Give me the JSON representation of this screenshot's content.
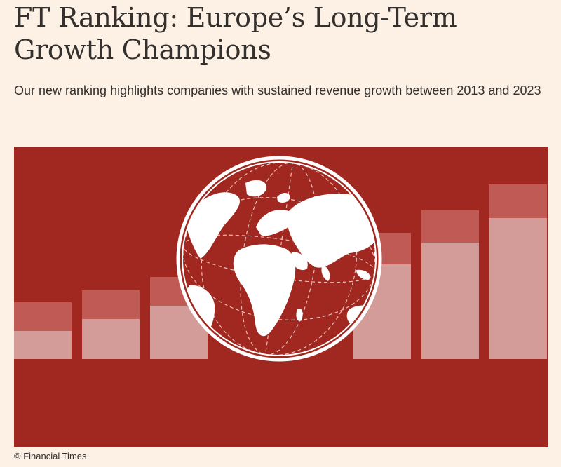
{
  "article": {
    "title": "FT Ranking: Europe’s Long-Term Growth Champions",
    "subtitle": "Our new ranking highlights companies with sustained revenue growth between 2013 and 2023"
  },
  "image": {
    "description_icon": "globe-icon",
    "credit": "© Financial Times"
  },
  "colors": {
    "page_background": "#fdf1e6",
    "image_background": "#a12820",
    "bar_top": "#bf5a55",
    "bar_bottom": "#d49c98",
    "globe": "#ffffff"
  }
}
